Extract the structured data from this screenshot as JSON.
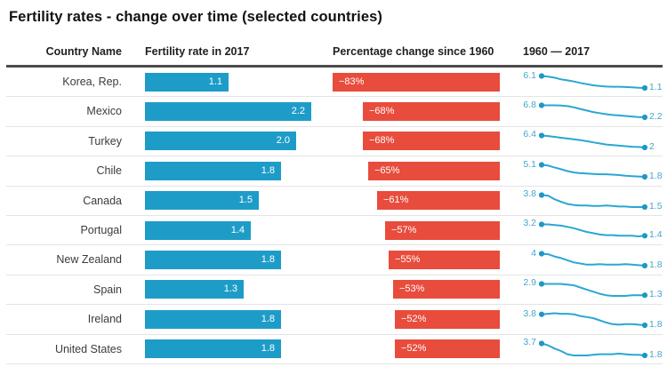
{
  "title": "Fertility rates - change over time (selected countries)",
  "colors": {
    "bar_blue": "#1e9cc8",
    "bar_red": "#e84c3c",
    "spark_line": "#2ba6d3",
    "spark_dot": "#1f97c6",
    "spark_label": "#45a5cc"
  },
  "chart_data": {
    "type": "table",
    "title": "Fertility rates - change over time (selected countries)",
    "columns": [
      "Country Name",
      "Fertility rate in 2017",
      "Percentage change since 1960",
      "1960 — 2017"
    ],
    "bar_axis": {
      "fertility_range": [
        0,
        2.5
      ],
      "pct_range": [
        0,
        -100
      ]
    },
    "legend_position": "none",
    "rows": [
      {
        "country": "Korea, Rep.",
        "fertility_2017": 1.1,
        "fertility_2017_label": "1.1",
        "pct_change": -83,
        "pct_change_label": "−83%",
        "value_1960": 6.1,
        "start_label": "6.1",
        "end_label": "1.1",
        "trend_1960_2017": [
          6.1,
          5.8,
          5.4,
          4.7,
          4.3,
          3.8,
          3.2,
          2.7,
          2.2,
          1.9,
          1.7,
          1.6,
          1.6,
          1.5,
          1.4,
          1.2,
          1.1
        ]
      },
      {
        "country": "Mexico",
        "fertility_2017": 2.2,
        "fertility_2017_label": "2.2",
        "pct_change": -68,
        "pct_change_label": "−68%",
        "value_1960": 6.8,
        "start_label": "6.8",
        "end_label": "2.2",
        "trend_1960_2017": [
          6.8,
          6.8,
          6.8,
          6.7,
          6.5,
          6.0,
          5.4,
          4.8,
          4.2,
          3.8,
          3.4,
          3.1,
          2.9,
          2.7,
          2.5,
          2.3,
          2.2
        ]
      },
      {
        "country": "Turkey",
        "fertility_2017": 2.0,
        "fertility_2017_label": "2.0",
        "pct_change": -68,
        "pct_change_label": "−68%",
        "value_1960": 6.4,
        "start_label": "6.4",
        "end_label": "2",
        "trend_1960_2017": [
          6.4,
          6.2,
          5.9,
          5.6,
          5.3,
          5.0,
          4.7,
          4.3,
          3.9,
          3.5,
          3.1,
          2.9,
          2.7,
          2.5,
          2.3,
          2.2,
          2.0
        ]
      },
      {
        "country": "Chile",
        "fertility_2017": 1.8,
        "fertility_2017_label": "1.8",
        "pct_change": -65,
        "pct_change_label": "−65%",
        "value_1960": 5.1,
        "start_label": "5.1",
        "end_label": "1.8",
        "trend_1960_2017": [
          5.1,
          4.9,
          4.4,
          3.9,
          3.4,
          3.0,
          2.8,
          2.7,
          2.6,
          2.5,
          2.5,
          2.4,
          2.3,
          2.1,
          2.0,
          1.9,
          1.8
        ]
      },
      {
        "country": "Canada",
        "fertility_2017": 1.5,
        "fertility_2017_label": "1.5",
        "pct_change": -61,
        "pct_change_label": "−61%",
        "value_1960": 3.8,
        "start_label": "3.8",
        "end_label": "1.5",
        "trend_1960_2017": [
          3.8,
          3.7,
          3.0,
          2.5,
          2.1,
          1.9,
          1.8,
          1.8,
          1.7,
          1.7,
          1.8,
          1.7,
          1.6,
          1.6,
          1.5,
          1.5,
          1.5
        ]
      },
      {
        "country": "Portugal",
        "fertility_2017": 1.4,
        "fertility_2017_label": "1.4",
        "pct_change": -57,
        "pct_change_label": "−57%",
        "value_1960": 3.2,
        "start_label": "3.2",
        "end_label": "1.4",
        "trend_1960_2017": [
          3.2,
          3.2,
          3.1,
          3.0,
          2.8,
          2.6,
          2.3,
          2.0,
          1.8,
          1.6,
          1.5,
          1.5,
          1.4,
          1.4,
          1.4,
          1.3,
          1.4
        ]
      },
      {
        "country": "New Zealand",
        "fertility_2017": 1.8,
        "fertility_2017_label": "1.8",
        "pct_change": -55,
        "pct_change_label": "−55%",
        "value_1960": 4.0,
        "start_label": "4",
        "end_label": "1.8",
        "trend_1960_2017": [
          4.0,
          3.9,
          3.5,
          3.2,
          2.8,
          2.4,
          2.2,
          2.0,
          2.0,
          2.1,
          2.0,
          2.0,
          2.0,
          2.1,
          2.0,
          1.9,
          1.8
        ]
      },
      {
        "country": "Spain",
        "fertility_2017": 1.3,
        "fertility_2017_label": "1.3",
        "pct_change": -53,
        "pct_change_label": "−53%",
        "value_1960": 2.9,
        "start_label": "2.9",
        "end_label": "1.3",
        "trend_1960_2017": [
          2.9,
          2.9,
          2.9,
          2.9,
          2.8,
          2.7,
          2.4,
          2.1,
          1.8,
          1.5,
          1.3,
          1.2,
          1.2,
          1.2,
          1.3,
          1.3,
          1.3
        ]
      },
      {
        "country": "Ireland",
        "fertility_2017": 1.8,
        "fertility_2017_label": "1.8",
        "pct_change": -52,
        "pct_change_label": "−52%",
        "value_1960": 3.8,
        "start_label": "3.8",
        "end_label": "1.8",
        "trend_1960_2017": [
          3.8,
          3.9,
          4.0,
          3.9,
          3.9,
          3.8,
          3.5,
          3.3,
          3.1,
          2.7,
          2.3,
          2.0,
          1.9,
          2.0,
          2.0,
          1.9,
          1.8
        ]
      },
      {
        "country": "United States",
        "fertility_2017": 1.8,
        "fertility_2017_label": "1.8",
        "pct_change": -52,
        "pct_change_label": "−52%",
        "value_1960": 3.7,
        "start_label": "3.7",
        "end_label": "1.8",
        "trend_1960_2017": [
          3.7,
          3.4,
          2.9,
          2.5,
          2.0,
          1.8,
          1.8,
          1.8,
          1.9,
          2.0,
          2.0,
          2.0,
          2.1,
          2.0,
          1.9,
          1.9,
          1.8
        ]
      }
    ]
  }
}
